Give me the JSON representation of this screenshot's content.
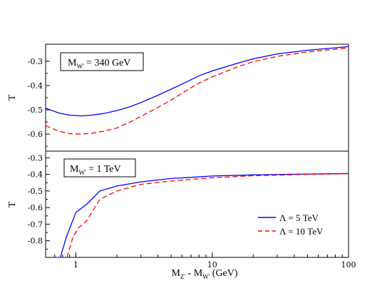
{
  "chart_data": [
    {
      "type": "line",
      "panel": "top",
      "annotation": {
        "main": "M",
        "sub": "W'",
        "rest": " = 340 GeV"
      },
      "ylabel": "T",
      "xscale": "log",
      "xlim": [
        0.6,
        100
      ],
      "ylim": [
        -0.67,
        -0.23
      ],
      "yticks": [
        -0.3,
        -0.4,
        -0.5,
        -0.6
      ],
      "ytick_labels": [
        "-0.3",
        "-0.4",
        "-0.5",
        "-0.6"
      ],
      "series": [
        {
          "name": "Λ = 5 TeV",
          "color": "#0000ff",
          "dash": "solid",
          "x": [
            0.6,
            0.75,
            0.9,
            1.1,
            1.3,
            1.6,
            2.0,
            2.5,
            3.0,
            4.0,
            5.0,
            6.5,
            8.0,
            10,
            15,
            20,
            30,
            50,
            100
          ],
          "y": [
            -0.493,
            -0.513,
            -0.522,
            -0.525,
            -0.522,
            -0.515,
            -0.503,
            -0.487,
            -0.47,
            -0.44,
            -0.415,
            -0.385,
            -0.36,
            -0.34,
            -0.31,
            -0.29,
            -0.27,
            -0.255,
            -0.24
          ]
        },
        {
          "name": "Λ = 10 TeV",
          "color": "#ff0000",
          "dash": "dashed",
          "x": [
            0.6,
            0.75,
            0.9,
            1.1,
            1.3,
            1.6,
            2.0,
            2.5,
            3.0,
            4.0,
            5.0,
            6.5,
            8.0,
            10,
            15,
            20,
            30,
            50,
            100
          ],
          "y": [
            -0.565,
            -0.588,
            -0.598,
            -0.6,
            -0.597,
            -0.588,
            -0.575,
            -0.55,
            -0.527,
            -0.49,
            -0.46,
            -0.42,
            -0.39,
            -0.365,
            -0.325,
            -0.302,
            -0.28,
            -0.262,
            -0.245
          ]
        }
      ]
    },
    {
      "type": "line",
      "panel": "bottom",
      "annotation": {
        "main": "M",
        "sub": "W'",
        "rest": " = 1 TeV"
      },
      "ylabel": "T",
      "xlabel": {
        "a_main": "M",
        "a_sub": "Z'",
        "mid": " - M",
        "b_sub": "W'",
        "tail": "  (GeV)"
      },
      "xscale": "log",
      "xlim": [
        0.6,
        100
      ],
      "xticks": [
        1,
        10,
        100
      ],
      "xtick_labels": [
        "1",
        "10",
        "100"
      ],
      "ylim": [
        -0.9,
        -0.26
      ],
      "yticks": [
        -0.3,
        -0.4,
        -0.5,
        -0.6,
        -0.7,
        -0.8
      ],
      "ytick_labels": [
        "-0.3",
        "-0.4",
        "-0.5",
        "-0.6",
        "-0.7",
        "-0.8"
      ],
      "legend": {
        "position": "lower-right"
      },
      "series": [
        {
          "name": "Λ = 5 TeV",
          "color": "#0000ff",
          "dash": "solid",
          "x": [
            0.77,
            0.85,
            1.0,
            1.2,
            1.5,
            2.0,
            3.0,
            5.0,
            10,
            20,
            50,
            100
          ],
          "y": [
            -0.9,
            -0.78,
            -0.63,
            -0.58,
            -0.5,
            -0.47,
            -0.445,
            -0.425,
            -0.41,
            -0.403,
            -0.398,
            -0.395
          ]
        },
        {
          "name": "Λ = 10 TeV",
          "color": "#ff0000",
          "dash": "dashed",
          "x": [
            0.86,
            0.95,
            1.05,
            1.2,
            1.5,
            2.0,
            3.0,
            5.0,
            10,
            20,
            50,
            100
          ],
          "y": [
            -0.9,
            -0.78,
            -0.72,
            -0.68,
            -0.55,
            -0.5,
            -0.46,
            -0.44,
            -0.42,
            -0.408,
            -0.4,
            -0.396
          ]
        }
      ]
    }
  ]
}
